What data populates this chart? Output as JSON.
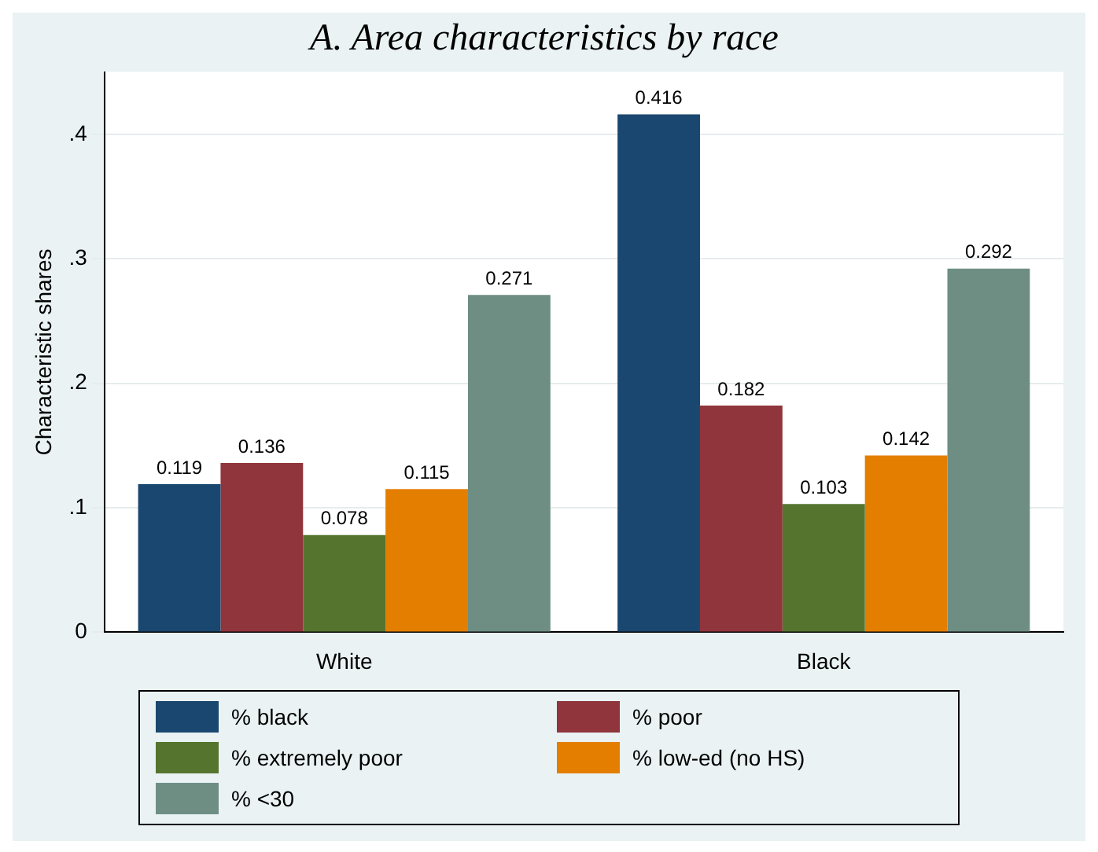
{
  "chart_data": {
    "type": "bar",
    "title": "A. Area characteristics by race",
    "ylabel": "Characteristic shares",
    "categories": [
      "White",
      "Black"
    ],
    "series": [
      {
        "name": "% black",
        "color": "#1a476f",
        "values": [
          0.119,
          0.416
        ]
      },
      {
        "name": "% poor",
        "color": "#90353b",
        "values": [
          0.136,
          0.182
        ]
      },
      {
        "name": "% extremely poor",
        "color": "#55752f",
        "values": [
          0.078,
          0.103
        ]
      },
      {
        "name": "% low-ed (no HS)",
        "color": "#e37e00",
        "values": [
          0.115,
          0.142
        ]
      },
      {
        "name": "% <30",
        "color": "#6e8e84",
        "values": [
          0.271,
          0.292
        ]
      }
    ],
    "ylim": [
      0,
      0.45
    ],
    "yticks": [
      {
        "value": 0,
        "label": "0"
      },
      {
        "value": 0.1,
        "label": ".1"
      },
      {
        "value": 0.2,
        "label": ".2"
      },
      {
        "value": 0.3,
        "label": ".3"
      },
      {
        "value": 0.4,
        "label": ".4"
      }
    ],
    "grid": "y",
    "legend": "bottom",
    "data_labels": true
  }
}
